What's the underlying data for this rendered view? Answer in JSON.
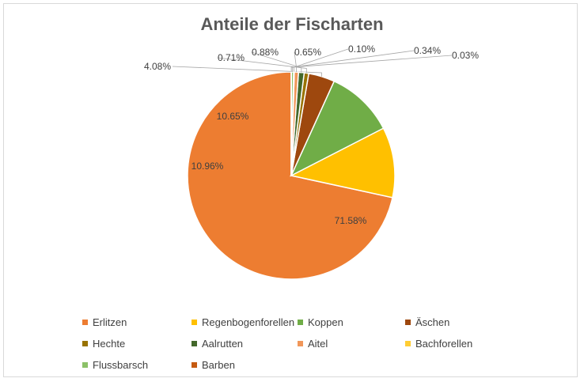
{
  "chart_data": {
    "type": "pie",
    "title": "Anteile der Fischarten",
    "categories": [
      "Erlitzen",
      "Regenbogenforellen",
      "Koppen",
      "Äschen",
      "Hechte",
      "Aalrutten",
      "Aitel",
      "Bachforellen",
      "Flussbarsch",
      "Barben"
    ],
    "values": [
      71.58,
      10.96,
      10.65,
      4.08,
      0.71,
      0.88,
      0.65,
      0.1,
      0.34,
      0.03
    ],
    "labels": [
      "71.58%",
      "10.96%",
      "10.65%",
      "4.08%",
      "0.71%",
      "0.88%",
      "0.65%",
      "0.10%",
      "0.34%",
      "0.03%"
    ],
    "colors": [
      "#ED7D31",
      "#FFC000",
      "#70AD47",
      "#9E480E",
      "#997300",
      "#43682B",
      "#F1975A",
      "#FFCD33",
      "#8CC168",
      "#C55A11"
    ],
    "legend_position": "bottom"
  }
}
